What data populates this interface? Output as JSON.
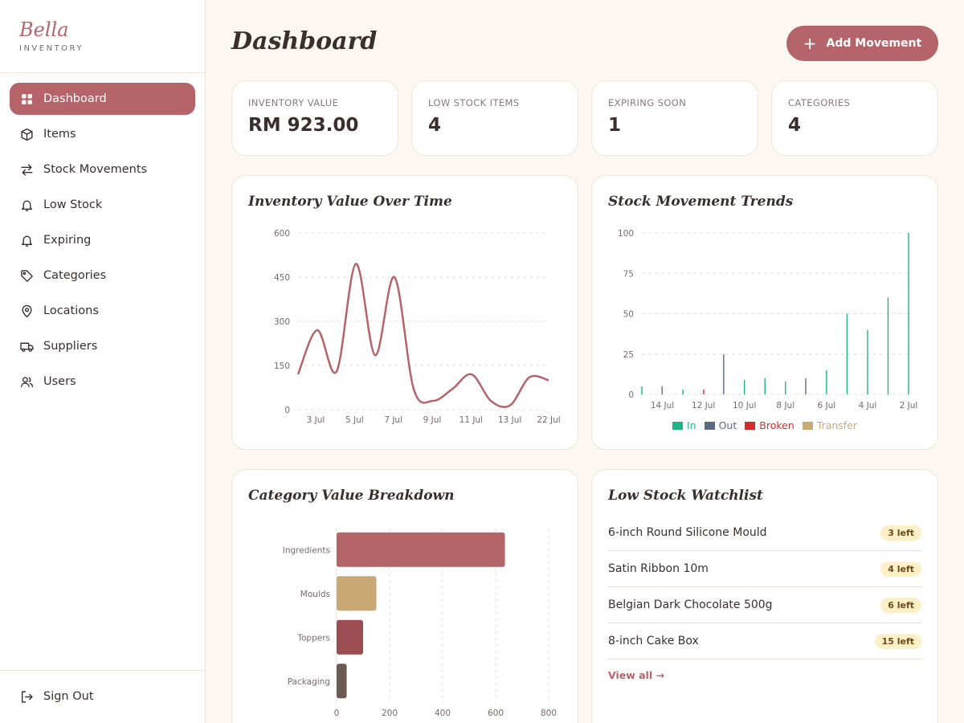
{
  "brand": {
    "name": "Bella",
    "subtitle": "INVENTORY"
  },
  "nav": {
    "items": [
      {
        "label": "Dashboard",
        "icon": "grid-icon",
        "active": true
      },
      {
        "label": "Items",
        "icon": "box-icon"
      },
      {
        "label": "Stock Movements",
        "icon": "arrows-icon"
      },
      {
        "label": "Low Stock",
        "icon": "bell-icon"
      },
      {
        "label": "Expiring",
        "icon": "bell-icon"
      },
      {
        "label": "Categories",
        "icon": "tag-icon"
      },
      {
        "label": "Locations",
        "icon": "map-pin-icon"
      },
      {
        "label": "Suppliers",
        "icon": "truck-icon"
      },
      {
        "label": "Users",
        "icon": "users-icon"
      }
    ],
    "sign_out": "Sign Out"
  },
  "header": {
    "title": "Dashboard",
    "add_button": "Add Movement"
  },
  "stats": [
    {
      "label": "INVENTORY VALUE",
      "value": "RM 923.00"
    },
    {
      "label": "LOW STOCK ITEMS",
      "value": "4"
    },
    {
      "label": "EXPIRING SOON",
      "value": "1"
    },
    {
      "label": "CATEGORIES",
      "value": "4"
    }
  ],
  "cards": {
    "inventory_title": "Inventory Value Over Time",
    "movement_title": "Stock Movement Trends",
    "category_title": "Category Value Breakdown",
    "watchlist_title": "Low Stock Watchlist"
  },
  "watchlist": {
    "items": [
      {
        "name": "6-inch Round Silicone Mould",
        "badge": "3 left"
      },
      {
        "name": "Satin Ribbon 10m",
        "badge": "4 left"
      },
      {
        "name": "Belgian Dark Chocolate 500g",
        "badge": "6 left"
      },
      {
        "name": "8-inch Cake Box",
        "badge": "15 left"
      }
    ],
    "view_all": "View all →"
  },
  "colors": {
    "accent": "#b5646a",
    "in": "#1db585",
    "out": "#5c6a85",
    "broken": "#d42b2b",
    "transfer": "#c9a876"
  },
  "chart_data": [
    {
      "type": "line",
      "title": "Inventory Value Over Time",
      "x_ticks": [
        "3 Jul",
        "5 Jul",
        "7 Jul",
        "9 Jul",
        "11 Jul",
        "13 Jul",
        "22 Jul"
      ],
      "y_ticks": [
        0,
        150,
        300,
        450,
        600
      ],
      "ylim": [
        0,
        600
      ],
      "grid": true,
      "series": [
        {
          "values": [
            120,
            270,
            130,
            495,
            185,
            450,
            70,
            30,
            70,
            120,
            30,
            15,
            110,
            100
          ]
        }
      ]
    },
    {
      "type": "bar",
      "title": "Stock Movement Trends",
      "categories": [
        "22 Jul",
        "14 Jul",
        "13 Jul",
        "12 Jul",
        "11 Jul",
        "10 Jul",
        "9 Jul",
        "8 Jul",
        "7 Jul",
        "6 Jul",
        "5 Jul",
        "4 Jul",
        "3 Jul",
        "2 Jul"
      ],
      "x_ticks": [
        "14 Jul",
        "12 Jul",
        "10 Jul",
        "8 Jul",
        "6 Jul",
        "4 Jul",
        "2 Jul"
      ],
      "y_ticks": [
        0,
        25,
        50,
        75,
        100
      ],
      "ylim": [
        0,
        100
      ],
      "grid": true,
      "legend": "bottom",
      "series": [
        {
          "name": "In",
          "values": [
            5,
            0,
            3,
            0,
            0,
            9,
            10,
            8,
            0,
            15,
            50,
            40,
            60,
            100
          ]
        },
        {
          "name": "Out",
          "values": [
            0,
            5,
            0,
            0,
            25,
            0,
            0,
            0,
            10,
            0,
            0,
            0,
            0,
            0
          ]
        },
        {
          "name": "Broken",
          "values": [
            0,
            0,
            0,
            3,
            0,
            0,
            0,
            0,
            0,
            0,
            0,
            0,
            0,
            0
          ]
        },
        {
          "name": "Transfer",
          "values": [
            0,
            0,
            0,
            0,
            0,
            0,
            0,
            0,
            0,
            0,
            0,
            0,
            0,
            0
          ]
        }
      ]
    },
    {
      "type": "bar",
      "orientation": "horizontal",
      "title": "Category Value Breakdown",
      "categories": [
        "Ingredients",
        "Moulds",
        "Toppers",
        "Packaging"
      ],
      "values": [
        635,
        150,
        100,
        38
      ],
      "colors": [
        "#b5646a",
        "#c9a876",
        "#9b4d53",
        "#6b5a52"
      ],
      "x_ticks": [
        0,
        200,
        400,
        600,
        800
      ],
      "xlim": [
        0,
        800
      ],
      "grid": true
    }
  ]
}
